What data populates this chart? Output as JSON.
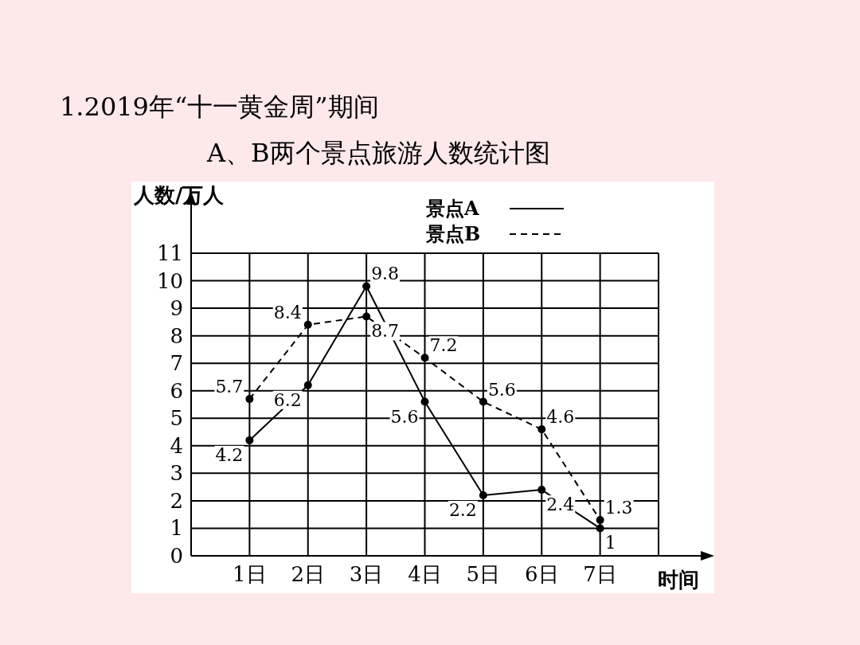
{
  "chart_data": {
    "type": "line",
    "title": "1.2019年“十一黄金周”期间",
    "subtitle": "A、B两个景点旅游人数统计图",
    "ylabel": "人数/万人",
    "xlabel": "时间",
    "categories": [
      "1日",
      "2日",
      "3日",
      "4日",
      "5日",
      "6日",
      "7日"
    ],
    "series": [
      {
        "name": "景点A",
        "color": "#000000",
        "line_style": "solid",
        "values": [
          4.2,
          6.2,
          9.8,
          5.6,
          2.2,
          2.4,
          1
        ]
      },
      {
        "name": "景点B",
        "color": "#000000",
        "line_style": "dashed",
        "values": [
          5.7,
          8.4,
          8.7,
          7.2,
          5.6,
          4.6,
          1.3
        ]
      }
    ],
    "ylim": [
      0,
      11
    ],
    "yticks": [
      0,
      1,
      2,
      3,
      4,
      5,
      6,
      7,
      8,
      9,
      10,
      11
    ],
    "grid": true,
    "legend": "top right",
    "marker": "circle",
    "data_labels": true
  }
}
